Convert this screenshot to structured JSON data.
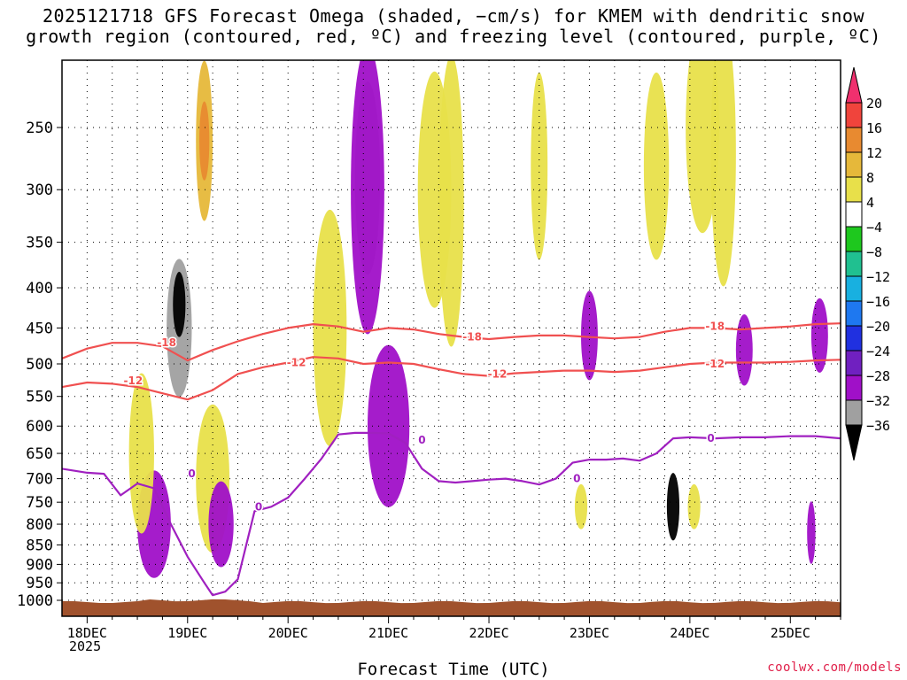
{
  "title_line1": "2025121718 GFS Forecast Omega (shaded, −cm/s) for KMEM with dendritic snow",
  "title_line2": "growth region (contoured, red, ºC) and freezing level (contoured, purple, ºC)",
  "credit": "coolwx.com/models",
  "chart_data": {
    "type": "heatmap",
    "title": "2025121718 GFS Forecast Omega (shaded, −cm/s) for KMEM with dendritic snow growth region (contoured, red, ºC) and freezing level (contoured, purple, ºC)",
    "xlabel": "Forecast Time (UTC)",
    "x_year_label": "2025",
    "ylabel": "",
    "x_unit": "hours since 18DEC 00Z",
    "xlim": [
      -6,
      180
    ],
    "y_ticks": [
      250,
      300,
      350,
      400,
      450,
      500,
      550,
      600,
      650,
      700,
      750,
      800,
      850,
      900,
      950,
      1000
    ],
    "x_ticks": [
      {
        "label": "18DEC",
        "x": 0
      },
      {
        "label": "19DEC",
        "x": 24
      },
      {
        "label": "20DEC",
        "x": 48
      },
      {
        "label": "21DEC",
        "x": 72
      },
      {
        "label": "22DEC",
        "x": 96
      },
      {
        "label": "23DEC",
        "x": 120
      },
      {
        "label": "24DEC",
        "x": 144
      },
      {
        "label": "25DEC",
        "x": 168
      }
    ],
    "colorbar": {
      "labels": [
        "20",
        "16",
        "12",
        "8",
        "4",
        "−4",
        "−8",
        "−12",
        "−16",
        "−20",
        "−24",
        "−28",
        "−32",
        "−36"
      ],
      "colors": [
        "#f0306e",
        "#f0443c",
        "#e88a30",
        "#e6b83a",
        "#e8e04a",
        "#ffffff",
        "#1ec81e",
        "#20c090",
        "#18b0e0",
        "#1e78f0",
        "#2030e0",
        "#7020c0",
        "#a010c8",
        "#a0a0a0",
        "#000000"
      ]
    },
    "series": [
      {
        "name": "-18 ºC",
        "color": "#f05050",
        "x": [
          -6,
          0,
          6,
          12,
          18,
          24,
          30,
          36,
          42,
          48,
          54,
          60,
          66,
          72,
          78,
          84,
          90,
          96,
          102,
          108,
          114,
          120,
          126,
          132,
          138,
          144,
          150,
          156,
          162,
          168,
          174,
          180
        ],
        "p": [
          492,
          478,
          470,
          470,
          475,
          495,
          480,
          468,
          458,
          450,
          445,
          448,
          455,
          450,
          452,
          458,
          462,
          465,
          462,
          460,
          460,
          462,
          464,
          462,
          455,
          450,
          450,
          452,
          450,
          448,
          445,
          444
        ]
      },
      {
        "name": "-12 ºC",
        "color": "#f05050",
        "x": [
          -6,
          0,
          6,
          12,
          18,
          24,
          30,
          36,
          42,
          48,
          54,
          60,
          66,
          72,
          78,
          84,
          90,
          96,
          102,
          108,
          114,
          120,
          126,
          132,
          138,
          144,
          150,
          156,
          162,
          168,
          174,
          180
        ],
        "p": [
          535,
          528,
          530,
          535,
          545,
          555,
          540,
          515,
          505,
          498,
          490,
          492,
          500,
          498,
          500,
          508,
          515,
          518,
          514,
          512,
          510,
          510,
          512,
          510,
          505,
          500,
          498,
          498,
          498,
          497,
          495,
          494
        ]
      },
      {
        "name": "0 ºC",
        "color": "#a020c0",
        "x": [
          -6,
          0,
          4,
          8,
          12,
          16,
          20,
          24,
          28,
          30,
          33,
          36,
          40,
          44,
          48,
          52,
          56,
          60,
          64,
          68,
          72,
          76,
          80,
          84,
          88,
          92,
          96,
          100,
          104,
          108,
          112,
          116,
          120,
          124,
          128,
          132,
          136,
          140,
          144,
          150,
          156,
          162,
          168,
          174,
          180
        ],
        "p": [
          680,
          688,
          690,
          735,
          710,
          720,
          800,
          880,
          950,
          985,
          975,
          940,
          770,
          760,
          740,
          700,
          660,
          615,
          612,
          612,
          613,
          630,
          680,
          705,
          708,
          705,
          702,
          700,
          705,
          712,
          700,
          668,
          662,
          662,
          660,
          664,
          650,
          622,
          620,
          622,
          620,
          620,
          618,
          618,
          622
        ]
      }
    ],
    "contour_labels": [
      {
        "text": "-18",
        "x": 19,
        "p": 470
      },
      {
        "text": "-12",
        "x": 11,
        "p": 525
      },
      {
        "text": "-12",
        "x": 50,
        "p": 498
      },
      {
        "text": "-18",
        "x": 92,
        "p": 462
      },
      {
        "text": "-12",
        "x": 98,
        "p": 515
      },
      {
        "text": "-18",
        "x": 150,
        "p": 448
      },
      {
        "text": "-12",
        "x": 150,
        "p": 500
      },
      {
        "text": "0",
        "x": 25,
        "p": 690
      },
      {
        "text": "0",
        "x": 41,
        "p": 760
      },
      {
        "text": "0",
        "x": 80,
        "p": 625
      },
      {
        "text": "0",
        "x": 117,
        "p": 700
      },
      {
        "text": "0",
        "x": 149,
        "p": 622
      }
    ],
    "omega_blobs": [
      {
        "x": 22,
        "p": 450,
        "w": 3,
        "h": 180,
        "level": 7
      },
      {
        "x": 22,
        "p": 420,
        "w": 1.5,
        "h": 80,
        "level": 9
      },
      {
        "x": 28,
        "p": 260,
        "w": 2,
        "h": 120,
        "level": -2
      },
      {
        "x": 28,
        "p": 260,
        "w": 1.2,
        "h": 60,
        "level": -3
      },
      {
        "x": 30,
        "p": 700,
        "w": 4,
        "h": 300,
        "level": -1
      },
      {
        "x": 32,
        "p": 800,
        "w": 3,
        "h": 200,
        "level": 6
      },
      {
        "x": 16,
        "p": 800,
        "w": 4,
        "h": 250,
        "level": 6
      },
      {
        "x": 13,
        "p": 650,
        "w": 3,
        "h": 300,
        "level": -1
      },
      {
        "x": 67,
        "p": 290,
        "w": 3,
        "h": 160,
        "level": 7
      },
      {
        "x": 67,
        "p": 300,
        "w": 4,
        "h": 240,
        "level": 6
      },
      {
        "x": 72,
        "p": 600,
        "w": 5,
        "h": 280,
        "level": 6
      },
      {
        "x": 58,
        "p": 450,
        "w": 4,
        "h": 300,
        "level": -1
      },
      {
        "x": 83,
        "p": 300,
        "w": 4,
        "h": 200,
        "level": -1
      },
      {
        "x": 87,
        "p": 310,
        "w": 3,
        "h": 250,
        "level": -1
      },
      {
        "x": 120,
        "p": 460,
        "w": 2,
        "h": 120,
        "level": 6
      },
      {
        "x": 118,
        "p": 760,
        "w": 1.5,
        "h": 100,
        "level": -1
      },
      {
        "x": 140,
        "p": 760,
        "w": 1.5,
        "h": 150,
        "level": 8
      },
      {
        "x": 145,
        "p": 760,
        "w": 1.5,
        "h": 100,
        "level": -1
      },
      {
        "x": 147,
        "p": 250,
        "w": 4,
        "h": 150,
        "level": -1
      },
      {
        "x": 152,
        "p": 270,
        "w": 3,
        "h": 200,
        "level": -1
      },
      {
        "x": 136,
        "p": 280,
        "w": 3,
        "h": 150,
        "level": -1
      },
      {
        "x": 157,
        "p": 480,
        "w": 2,
        "h": 100,
        "level": 6
      },
      {
        "x": 175,
        "p": 460,
        "w": 2,
        "h": 100,
        "level": 6
      },
      {
        "x": 173,
        "p": 820,
        "w": 1,
        "h": 150,
        "level": 6
      },
      {
        "x": 108,
        "p": 280,
        "w": 2,
        "h": 150,
        "level": -1
      }
    ],
    "terrain_color": "#a0522d"
  }
}
